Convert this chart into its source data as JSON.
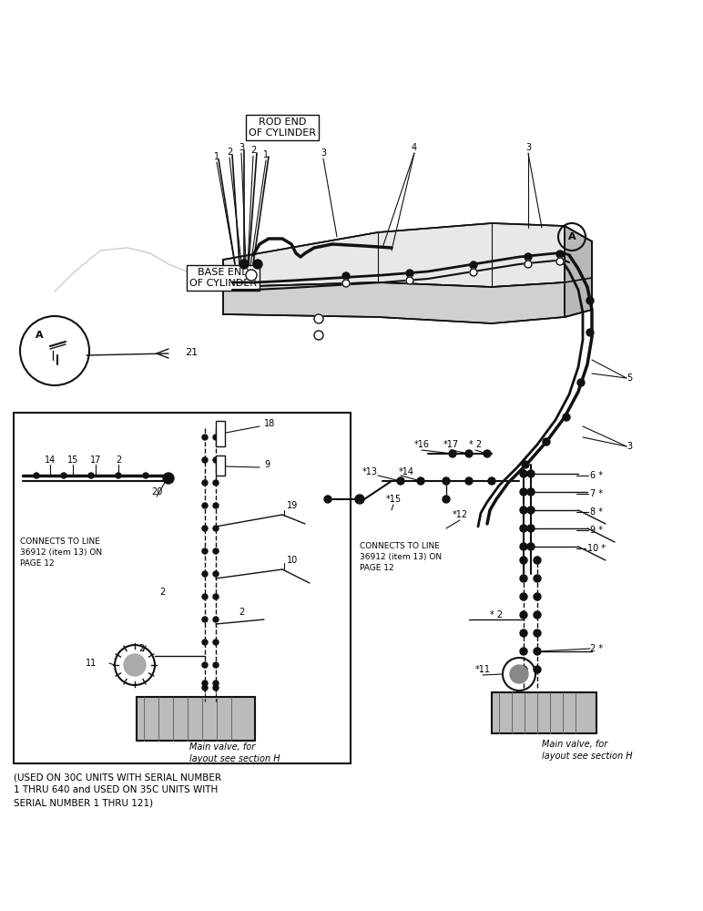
{
  "bg_color": "#ffffff",
  "line_color": "#111111",
  "text_color": "#000000",
  "fig_width": 7.72,
  "fig_height": 10.0,
  "dpi": 100,
  "bottom_text": "(USED ON 30C UNITS WITH SERIAL NUMBER\n1 THRU 640 and USED ON 35C UNITS WITH\nSERIAL NUMBER 1 THRU 121)",
  "main_valve_text": "Main valve, for\nlayout see section H",
  "connects_text": "CONNECTS TO LINE\n36912 (item 13) ON\nPAGE 12"
}
